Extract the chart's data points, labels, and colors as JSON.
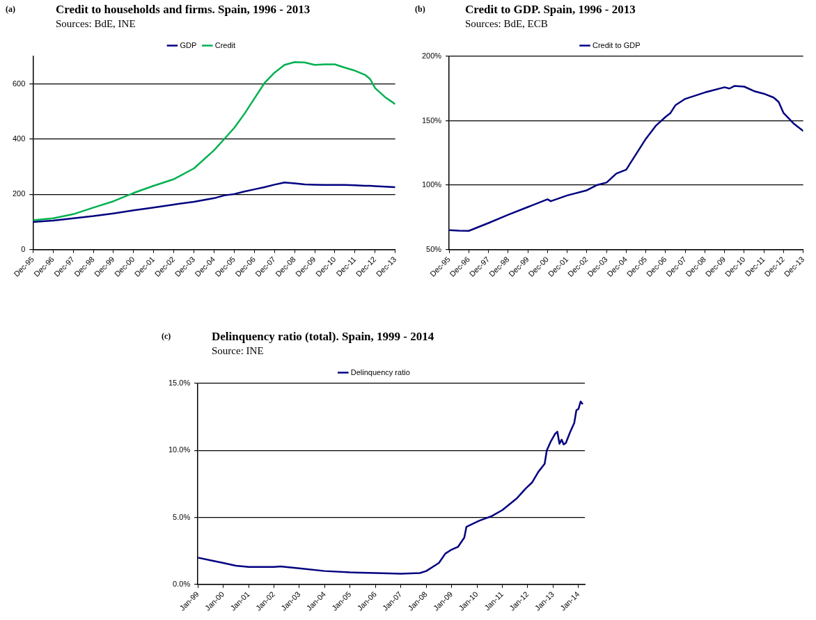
{
  "chart_data": [
    {
      "type": "line",
      "title": "Credit to households and firms. Spain, 1996 - 2013",
      "subtitle": "Sources: BdE, INE",
      "annotations": [
        "(a)"
      ],
      "legend": "top",
      "grid": "y",
      "x": [
        "1995-12",
        "1996-12",
        "1997-12",
        "1998-12",
        "1999-12",
        "2000-12",
        "2001-12",
        "2002-12",
        "2003-12",
        "2004-12",
        "2005-06",
        "2005-12",
        "2006-06",
        "2006-12",
        "2007-06",
        "2007-12",
        "2008-06",
        "2008-12",
        "2009-06",
        "2009-12",
        "2010-06",
        "2010-12",
        "2011-06",
        "2011-12",
        "2012-06",
        "2012-09",
        "2012-12",
        "2013-06",
        "2013-12"
      ],
      "xlim": [
        "1995-12",
        "2013-12"
      ],
      "xticks": [
        {
          "value": "1995-12",
          "label": "Dec-95"
        },
        {
          "value": "1996-12",
          "label": "Dec-96"
        },
        {
          "value": "1997-12",
          "label": "Dec-97"
        },
        {
          "value": "1998-12",
          "label": "Dec-98"
        },
        {
          "value": "1999-12",
          "label": "Dec-99"
        },
        {
          "value": "2000-12",
          "label": "Dec-00"
        },
        {
          "value": "2001-12",
          "label": "Dec-01"
        },
        {
          "value": "2002-12",
          "label": "Dec-02"
        },
        {
          "value": "2003-12",
          "label": "Dec-03"
        },
        {
          "value": "2004-12",
          "label": "Dec-04"
        },
        {
          "value": "2005-12",
          "label": "Dec-05"
        },
        {
          "value": "2006-12",
          "label": "Dec-06"
        },
        {
          "value": "2007-12",
          "label": "Dec-07"
        },
        {
          "value": "2008-12",
          "label": "Dec-08"
        },
        {
          "value": "2009-12",
          "label": "Dec-09"
        },
        {
          "value": "2010-12",
          "label": "Dec-10"
        },
        {
          "value": "2011-12",
          "label": "Dec-11"
        },
        {
          "value": "2012-12",
          "label": "Dec-12"
        },
        {
          "value": "2013-12",
          "label": "Dec-13"
        }
      ],
      "ylim": [
        0,
        700
      ],
      "yticks": [
        0,
        200,
        400,
        600
      ],
      "series": [
        {
          "name": "GDP",
          "color": "#000080",
          "values": [
            100,
            105,
            113,
            121,
            131,
            142,
            152,
            163,
            173,
            186,
            196,
            201,
            210,
            218,
            226,
            235,
            243,
            240,
            236,
            235,
            234,
            234,
            234,
            233,
            231,
            231,
            230,
            228,
            226
          ]
        },
        {
          "name": "Credit",
          "color": "#00b050",
          "values": [
            106,
            113,
            128,
            152,
            175,
            205,
            231,
            255,
            294,
            360,
            400,
            441,
            491,
            547,
            603,
            641,
            669,
            679,
            678,
            669,
            671,
            671,
            659,
            648,
            633,
            618,
            585,
            552,
            527
          ]
        }
      ]
    },
    {
      "type": "line",
      "title": "Credit to GDP. Spain, 1996 - 2013",
      "subtitle": "Sources: BdE, ECB",
      "annotations": [
        "(b)"
      ],
      "legend": "top",
      "grid": "y",
      "x": [
        "1995-12",
        "1996-06",
        "1996-12",
        "1997-12",
        "1998-12",
        "1999-12",
        "2000-12",
        "2001-02",
        "2001-12",
        "2002-12",
        "2003-06",
        "2003-12",
        "2004-06",
        "2004-12",
        "2005-02",
        "2005-06",
        "2005-12",
        "2006-06",
        "2006-12",
        "2007-03",
        "2007-06",
        "2007-12",
        "2008-12",
        "2009-12",
        "2010-03",
        "2010-06",
        "2010-12",
        "2011-06",
        "2011-12",
        "2012-06",
        "2012-09",
        "2012-12",
        "2013-06",
        "2013-12"
      ],
      "xlim": [
        "1995-12",
        "2013-12"
      ],
      "xticks": [
        {
          "value": "1995-12",
          "label": "Dec-95"
        },
        {
          "value": "1996-12",
          "label": "Dec-96"
        },
        {
          "value": "1997-12",
          "label": "Dec-97"
        },
        {
          "value": "1998-12",
          "label": "Dec-98"
        },
        {
          "value": "1999-12",
          "label": "Dec-99"
        },
        {
          "value": "2000-12",
          "label": "Dec-00"
        },
        {
          "value": "2001-12",
          "label": "Dec-01"
        },
        {
          "value": "2002-12",
          "label": "Dec-02"
        },
        {
          "value": "2003-12",
          "label": "Dec-03"
        },
        {
          "value": "2004-12",
          "label": "Dec-04"
        },
        {
          "value": "2005-12",
          "label": "Dec-05"
        },
        {
          "value": "2006-12",
          "label": "Dec-06"
        },
        {
          "value": "2007-12",
          "label": "Dec-07"
        },
        {
          "value": "2008-12",
          "label": "Dec-08"
        },
        {
          "value": "2009-12",
          "label": "Dec-09"
        },
        {
          "value": "2010-12",
          "label": "Dec-10"
        },
        {
          "value": "2011-12",
          "label": "Dec-11"
        },
        {
          "value": "2012-12",
          "label": "Dec-12"
        },
        {
          "value": "2013-12",
          "label": "Dec-13"
        }
      ],
      "ylim": [
        50,
        200
      ],
      "yticks": [
        {
          "value": 50,
          "label": "50%"
        },
        {
          "value": 100,
          "label": "100%"
        },
        {
          "value": 150,
          "label": "150%"
        },
        {
          "value": 200,
          "label": "200%"
        }
      ],
      "series": [
        {
          "name": "Credit to GDP",
          "color": "#000080",
          "values": [
            65,
            64.6,
            64.5,
            70.6,
            77,
            83,
            89,
            87.5,
            92,
            96,
            100,
            102,
            109,
            112,
            116,
            124,
            136,
            146,
            153,
            156,
            162,
            167,
            172,
            176,
            175,
            177,
            176.5,
            173,
            171,
            168,
            164.6,
            156,
            148,
            142
          ]
        }
      ]
    },
    {
      "type": "line",
      "title": "Delinquency ratio (total). Spain, 1999 - 2014",
      "subtitle": "Source: INE",
      "annotations": [
        "(c)"
      ],
      "legend": "top",
      "grid": "y",
      "x": [
        "1999-01",
        "1999-07",
        "2000-01",
        "2000-07",
        "2001-01",
        "2002-01",
        "2002-04",
        "2003-01",
        "2004-01",
        "2005-01",
        "2006-01",
        "2007-01",
        "2007-10",
        "2008-01",
        "2008-07",
        "2008-10",
        "2009-01",
        "2009-04",
        "2009-07",
        "2009-08",
        "2010-02",
        "2010-08",
        "2011-01",
        "2011-08",
        "2011-12",
        "2012-03",
        "2012-06",
        "2012-09",
        "2012-10",
        "2012-12",
        "2013-02",
        "2013-03",
        "2013-04",
        "2013-05",
        "2013-06",
        "2013-07",
        "2013-09",
        "2013-11",
        "2013-12",
        "2014-01",
        "2014-02",
        "2014-03"
      ],
      "xlim": [
        "1999-01",
        "2014-04"
      ],
      "xticks": [
        {
          "value": "1999-01",
          "label": "Jan-99"
        },
        {
          "value": "2000-01",
          "label": "Jan-00"
        },
        {
          "value": "2001-01",
          "label": "Jan-01"
        },
        {
          "value": "2002-01",
          "label": "Jan-02"
        },
        {
          "value": "2003-01",
          "label": "Jan-03"
        },
        {
          "value": "2004-01",
          "label": "Jan-04"
        },
        {
          "value": "2005-01",
          "label": "Jan-05"
        },
        {
          "value": "2006-01",
          "label": "Jan-06"
        },
        {
          "value": "2007-01",
          "label": "Jan-07"
        },
        {
          "value": "2008-01",
          "label": "Jan-08"
        },
        {
          "value": "2009-01",
          "label": "Jan-09"
        },
        {
          "value": "2010-01",
          "label": "Jan-10"
        },
        {
          "value": "2011-01",
          "label": "Jan-11"
        },
        {
          "value": "2012-01",
          "label": "Jan-12"
        },
        {
          "value": "2013-01",
          "label": "Jan-13"
        },
        {
          "value": "2014-01",
          "label": "Jan-14"
        }
      ],
      "ylim": [
        0,
        15
      ],
      "yticks": [
        {
          "value": 0,
          "label": "0.0%"
        },
        {
          "value": 5,
          "label": "5.0%"
        },
        {
          "value": 10,
          "label": "10.0%"
        },
        {
          "value": 15,
          "label": "15.0%"
        }
      ],
      "series": [
        {
          "name": "Delinquency ratio",
          "color": "#000080",
          "values": [
            2.0,
            1.8,
            1.6,
            1.4,
            1.3,
            1.3,
            1.35,
            1.2,
            1.0,
            0.9,
            0.85,
            0.8,
            0.85,
            1.0,
            1.6,
            2.3,
            2.6,
            2.8,
            3.5,
            4.3,
            4.75,
            5.1,
            5.55,
            6.45,
            7.15,
            7.6,
            8.4,
            9.0,
            10.0,
            10.7,
            11.25,
            11.4,
            10.5,
            10.8,
            10.45,
            10.55,
            11.35,
            12.05,
            13.0,
            13.1,
            13.65,
            13.45
          ]
        }
      ]
    }
  ]
}
